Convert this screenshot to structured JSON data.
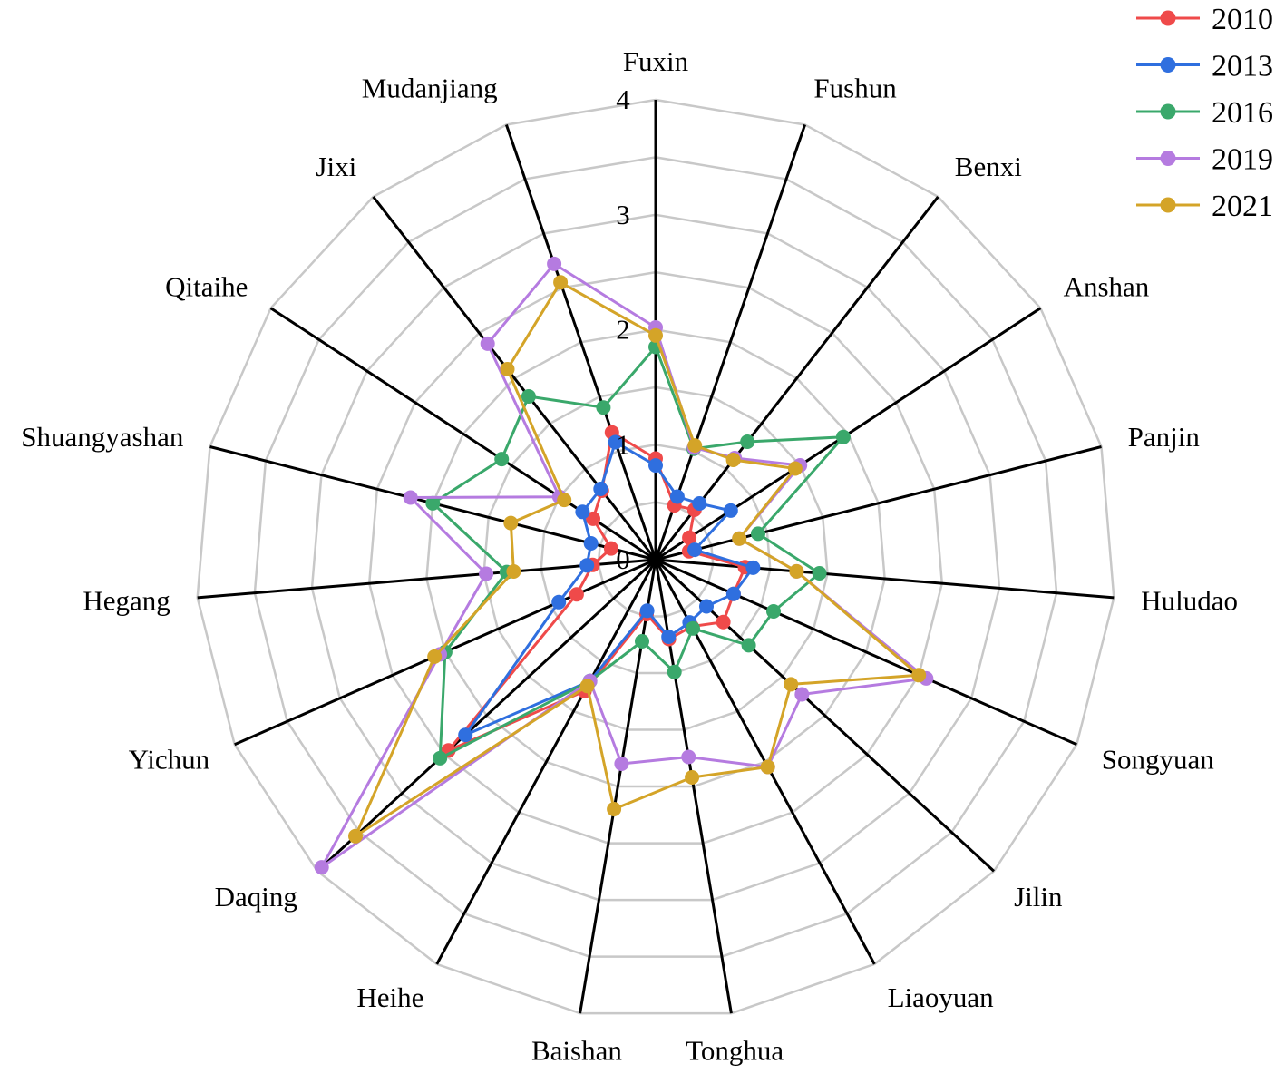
{
  "chart_data": {
    "type": "radar",
    "categories": [
      "Fuxin",
      "Fushun",
      "Benxi",
      "Anshan",
      "Panjin",
      "Huludao",
      "Songyuan",
      "Jilin",
      "Liaoyuan",
      "Tonghua",
      "Baishan",
      "Heihe",
      "Daqing",
      "Yichun",
      "Hegang",
      "Shuangyashan",
      "Qitaihe",
      "Jixi",
      "Mudanjiang"
    ],
    "rlim": [
      0,
      4
    ],
    "ticks": [
      "0",
      "1",
      "2",
      "3",
      "4"
    ],
    "grid": true,
    "legend_position": "top-right",
    "series": [
      {
        "name": "2010",
        "color": "#ef4a4a",
        "values": [
          0.88,
          0.5,
          0.55,
          0.35,
          0.3,
          0.78,
          0.74,
          0.8,
          0.66,
          0.7,
          0.48,
          1.3,
          2.45,
          0.75,
          0.55,
          0.4,
          0.65,
          0.76,
          1.17
        ]
      },
      {
        "name": "2013",
        "color": "#2f6fdf",
        "values": [
          0.82,
          0.58,
          0.62,
          0.78,
          0.35,
          0.85,
          0.74,
          0.6,
          0.62,
          0.68,
          0.45,
          1.2,
          2.25,
          0.92,
          0.6,
          0.58,
          0.76,
          0.78,
          1.08
        ]
      },
      {
        "name": "2016",
        "color": "#3aa86b",
        "values": [
          1.85,
          1.02,
          1.3,
          1.95,
          0.92,
          1.43,
          1.12,
          1.1,
          0.68,
          0.99,
          0.72,
          1.2,
          2.55,
          2.0,
          1.3,
          2.0,
          1.6,
          1.8,
          1.4
        ]
      },
      {
        "name": "2019",
        "color": "#b57be0",
        "values": [
          2.02,
          1.03,
          1.12,
          1.5,
          0.75,
          1.23,
          2.57,
          1.73,
          2.05,
          1.74,
          1.8,
          1.2,
          3.95,
          2.05,
          1.48,
          2.2,
          1.0,
          2.38,
          2.72
        ]
      },
      {
        "name": "2021",
        "color": "#d4a428",
        "values": [
          1.95,
          1.05,
          1.1,
          1.45,
          0.75,
          1.23,
          2.5,
          1.6,
          2.05,
          1.92,
          2.2,
          1.25,
          3.55,
          2.1,
          1.24,
          1.3,
          0.95,
          2.1,
          2.55
        ]
      }
    ]
  }
}
